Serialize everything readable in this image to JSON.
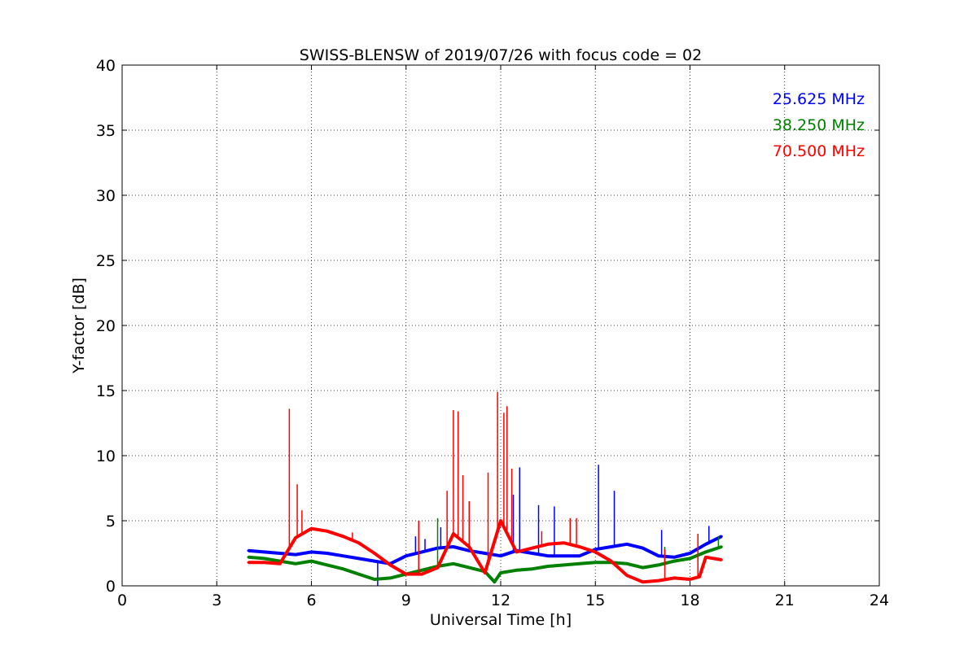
{
  "chart_data": {
    "type": "line",
    "title": "SWISS-BLENSW of 2019/07/26 with focus code = 02",
    "xlabel": "Universal Time [h]",
    "ylabel": "Y-factor [dB]",
    "xlim": [
      0,
      24
    ],
    "ylim": [
      0,
      40
    ],
    "xticks": [
      0,
      3,
      6,
      9,
      12,
      15,
      18,
      21,
      24
    ],
    "yticks": [
      0,
      5,
      10,
      15,
      20,
      25,
      30,
      35,
      40
    ],
    "grid": true,
    "legend_position": "top-right",
    "series": [
      {
        "name": "25.625 MHz",
        "color": "#0000ff",
        "x": [
          4.0,
          4.5,
          5.0,
          5.5,
          6.0,
          6.5,
          7.0,
          7.5,
          8.0,
          8.5,
          9.0,
          9.5,
          10.0,
          10.5,
          11.0,
          11.5,
          12.0,
          12.5,
          13.0,
          13.5,
          14.0,
          14.5,
          15.0,
          15.5,
          16.0,
          16.5,
          17.0,
          17.5,
          18.0,
          18.5,
          19.0
        ],
        "y": [
          2.7,
          2.6,
          2.5,
          2.4,
          2.6,
          2.5,
          2.3,
          2.1,
          1.9,
          1.7,
          2.3,
          2.6,
          2.9,
          3.0,
          2.7,
          2.5,
          2.3,
          2.7,
          2.5,
          2.3,
          2.3,
          2.3,
          2.8,
          3.0,
          3.2,
          2.9,
          2.3,
          2.2,
          2.5,
          3.2,
          3.8
        ],
        "spikes": [
          {
            "x": 9.3,
            "y": 3.8
          },
          {
            "x": 9.6,
            "y": 3.6
          },
          {
            "x": 10.1,
            "y": 4.5
          },
          {
            "x": 12.4,
            "y": 7.0
          },
          {
            "x": 12.6,
            "y": 9.1
          },
          {
            "x": 13.2,
            "y": 6.2
          },
          {
            "x": 13.7,
            "y": 6.1
          },
          {
            "x": 15.1,
            "y": 9.3
          },
          {
            "x": 15.6,
            "y": 7.3
          },
          {
            "x": 17.1,
            "y": 4.3
          },
          {
            "x": 18.6,
            "y": 4.6
          },
          {
            "x": 8.1,
            "y": 0.0
          }
        ]
      },
      {
        "name": "38.250 MHz",
        "color": "#008000",
        "x": [
          4.0,
          4.5,
          5.0,
          5.5,
          6.0,
          6.5,
          7.0,
          7.5,
          8.0,
          8.5,
          9.0,
          9.5,
          10.0,
          10.5,
          11.0,
          11.5,
          11.8,
          12.0,
          12.5,
          13.0,
          13.5,
          14.0,
          14.5,
          15.0,
          15.5,
          16.0,
          16.5,
          17.0,
          17.5,
          18.0,
          18.5,
          19.0
        ],
        "y": [
          2.2,
          2.1,
          1.9,
          1.7,
          1.9,
          1.6,
          1.3,
          0.9,
          0.5,
          0.6,
          0.9,
          1.2,
          1.5,
          1.7,
          1.4,
          1.1,
          0.3,
          1.0,
          1.2,
          1.3,
          1.5,
          1.6,
          1.7,
          1.8,
          1.8,
          1.7,
          1.4,
          1.6,
          1.9,
          2.1,
          2.6,
          3.0
        ],
        "spikes": [
          {
            "x": 10.0,
            "y": 5.2
          },
          {
            "x": 9.4,
            "y": 2.4
          },
          {
            "x": 17.2,
            "y": 3.0
          },
          {
            "x": 18.9,
            "y": 3.8
          }
        ]
      },
      {
        "name": "70.500 MHz",
        "color": "#ff0000",
        "x": [
          4.0,
          4.5,
          5.0,
          5.5,
          6.0,
          6.5,
          7.0,
          7.5,
          8.0,
          8.5,
          9.0,
          9.5,
          10.0,
          10.5,
          11.0,
          11.5,
          12.0,
          12.5,
          13.0,
          13.5,
          14.0,
          14.5,
          15.0,
          15.5,
          16.0,
          16.5,
          17.0,
          17.5,
          18.0,
          18.3,
          18.5,
          19.0
        ],
        "y": [
          1.8,
          1.8,
          1.7,
          3.7,
          4.4,
          4.2,
          3.8,
          3.3,
          2.5,
          1.6,
          0.9,
          0.9,
          1.4,
          4.0,
          3.0,
          1.0,
          5.0,
          2.6,
          2.9,
          3.2,
          3.3,
          3.0,
          2.6,
          1.9,
          0.8,
          0.3,
          0.4,
          0.6,
          0.5,
          0.7,
          2.2,
          2.0
        ],
        "spikes": [
          {
            "x": 5.3,
            "y": 13.6
          },
          {
            "x": 5.55,
            "y": 7.8
          },
          {
            "x": 5.7,
            "y": 5.8
          },
          {
            "x": 7.3,
            "y": 4.1
          },
          {
            "x": 9.4,
            "y": 5.0
          },
          {
            "x": 10.3,
            "y": 7.3
          },
          {
            "x": 10.5,
            "y": 13.5
          },
          {
            "x": 10.65,
            "y": 13.4
          },
          {
            "x": 10.8,
            "y": 8.5
          },
          {
            "x": 11.0,
            "y": 6.5
          },
          {
            "x": 11.6,
            "y": 8.7
          },
          {
            "x": 11.9,
            "y": 14.9
          },
          {
            "x": 12.1,
            "y": 13.3
          },
          {
            "x": 12.2,
            "y": 13.8
          },
          {
            "x": 12.35,
            "y": 9.0
          },
          {
            "x": 13.3,
            "y": 4.2
          },
          {
            "x": 14.2,
            "y": 5.2
          },
          {
            "x": 14.4,
            "y": 5.2
          },
          {
            "x": 17.2,
            "y": 2.8
          },
          {
            "x": 18.25,
            "y": 4.0
          }
        ]
      }
    ]
  }
}
